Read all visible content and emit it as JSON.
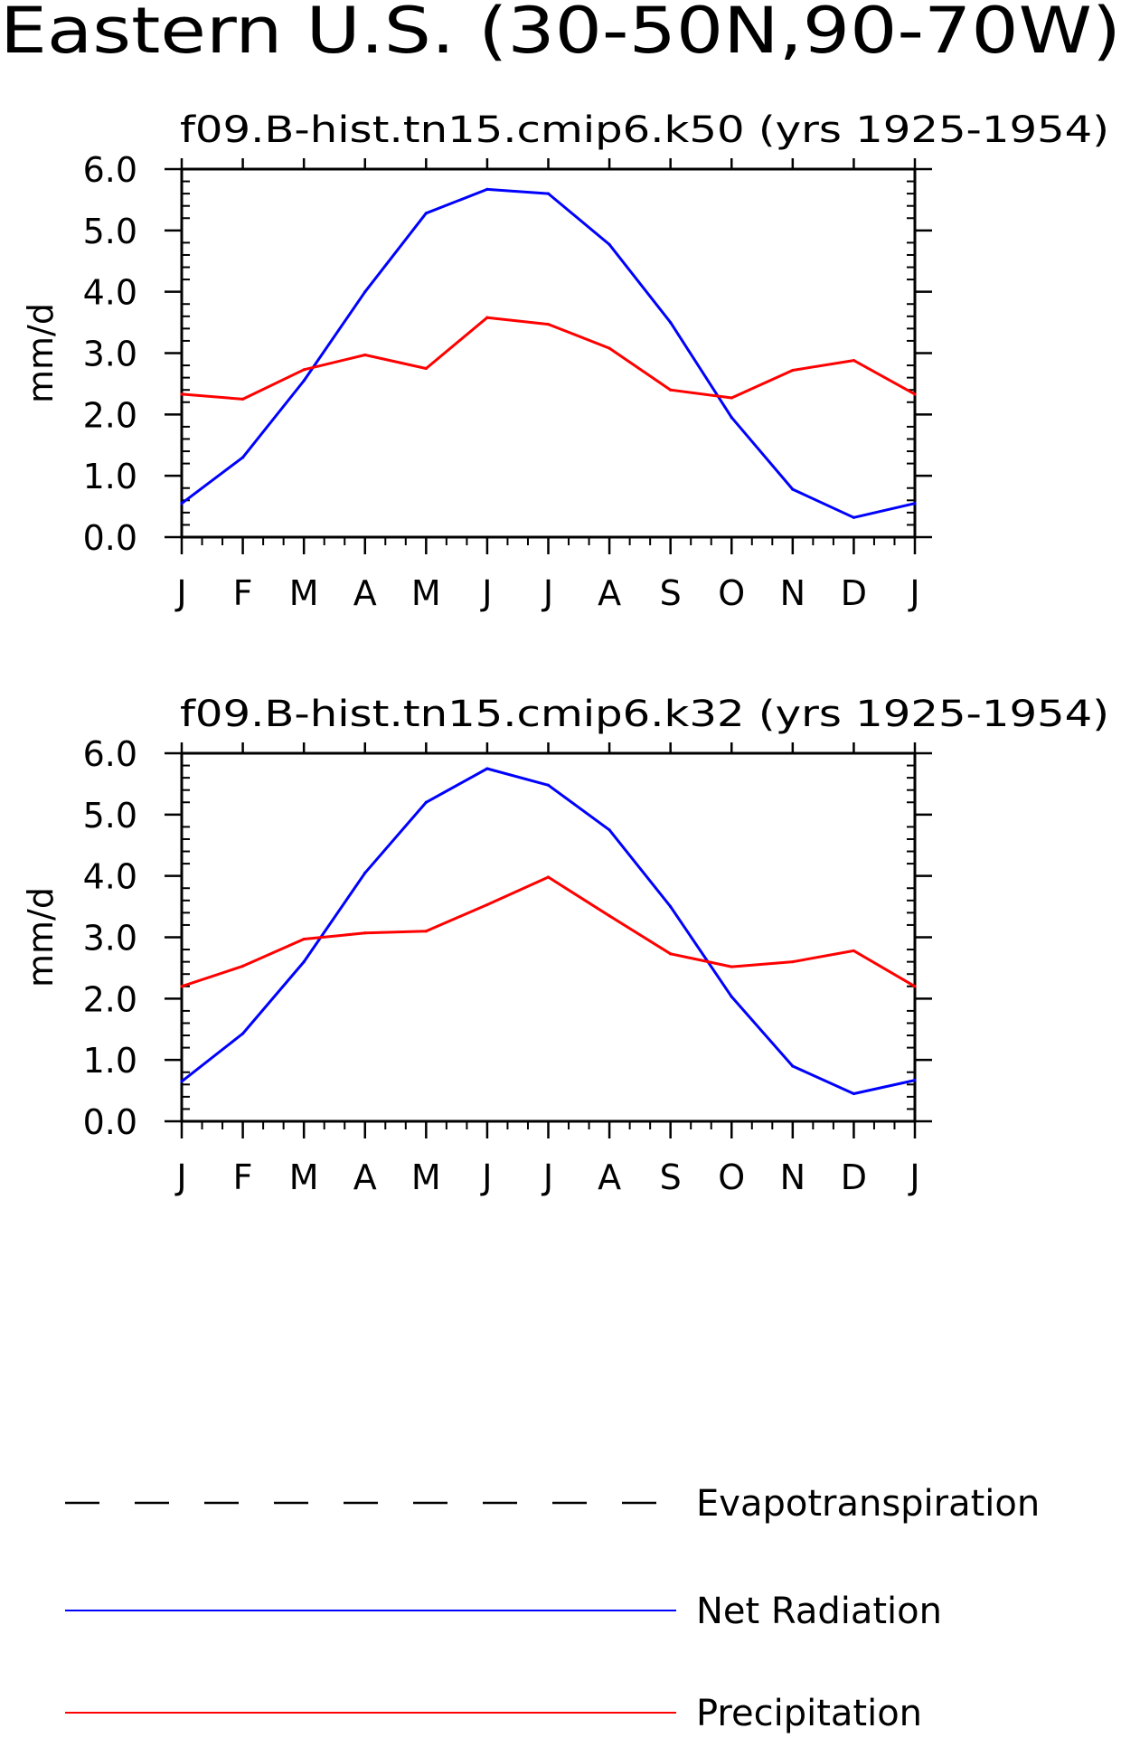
{
  "title": "Eastern U.S. (30-50N,90-70W)",
  "legend": {
    "items": [
      {
        "label": "Evapotranspiration",
        "color": "#000000",
        "style": "dashed"
      },
      {
        "label": "Net Radiation",
        "color": "#0000ff",
        "style": "solid"
      },
      {
        "label": "Precipitation",
        "color": "#ff0000",
        "style": "solid"
      }
    ]
  },
  "chart_data": [
    {
      "type": "line",
      "title": "f09.B-hist.tn15.cmip6.k50 (yrs 1925-1954)",
      "ylabel": "mm/d",
      "ylim": [
        0,
        6
      ],
      "yticks": [
        "0.0",
        "1.0",
        "2.0",
        "3.0",
        "4.0",
        "5.0",
        "6.0"
      ],
      "categories": [
        "J",
        "F",
        "M",
        "A",
        "M",
        "J",
        "J",
        "A",
        "S",
        "O",
        "N",
        "D",
        "J"
      ],
      "series": [
        {
          "name": "Net Radiation",
          "color": "#0000ff",
          "values": [
            0.55,
            1.3,
            2.55,
            4.0,
            5.28,
            5.67,
            5.6,
            4.77,
            3.5,
            1.95,
            0.78,
            0.32,
            0.55
          ]
        },
        {
          "name": "Precipitation",
          "color": "#ff0000",
          "values": [
            2.33,
            2.25,
            2.73,
            2.97,
            2.75,
            3.58,
            3.47,
            3.08,
            2.4,
            2.27,
            2.72,
            2.88,
            2.33
          ]
        }
      ]
    },
    {
      "type": "line",
      "title": "f09.B-hist.tn15.cmip6.k32 (yrs 1925-1954)",
      "ylabel": "mm/d",
      "ylim": [
        0,
        6
      ],
      "yticks": [
        "0.0",
        "1.0",
        "2.0",
        "3.0",
        "4.0",
        "5.0",
        "6.0"
      ],
      "categories": [
        "J",
        "F",
        "M",
        "A",
        "M",
        "J",
        "J",
        "A",
        "S",
        "O",
        "N",
        "D",
        "J"
      ],
      "series": [
        {
          "name": "Net Radiation",
          "color": "#0000ff",
          "values": [
            0.65,
            1.43,
            2.6,
            4.05,
            5.2,
            5.75,
            5.48,
            4.75,
            3.5,
            2.03,
            0.9,
            0.45,
            0.67
          ]
        },
        {
          "name": "Precipitation",
          "color": "#ff0000",
          "values": [
            2.2,
            2.53,
            2.97,
            3.07,
            3.1,
            3.53,
            3.98,
            3.35,
            2.73,
            2.52,
            2.6,
            2.78,
            2.2
          ]
        }
      ]
    }
  ]
}
